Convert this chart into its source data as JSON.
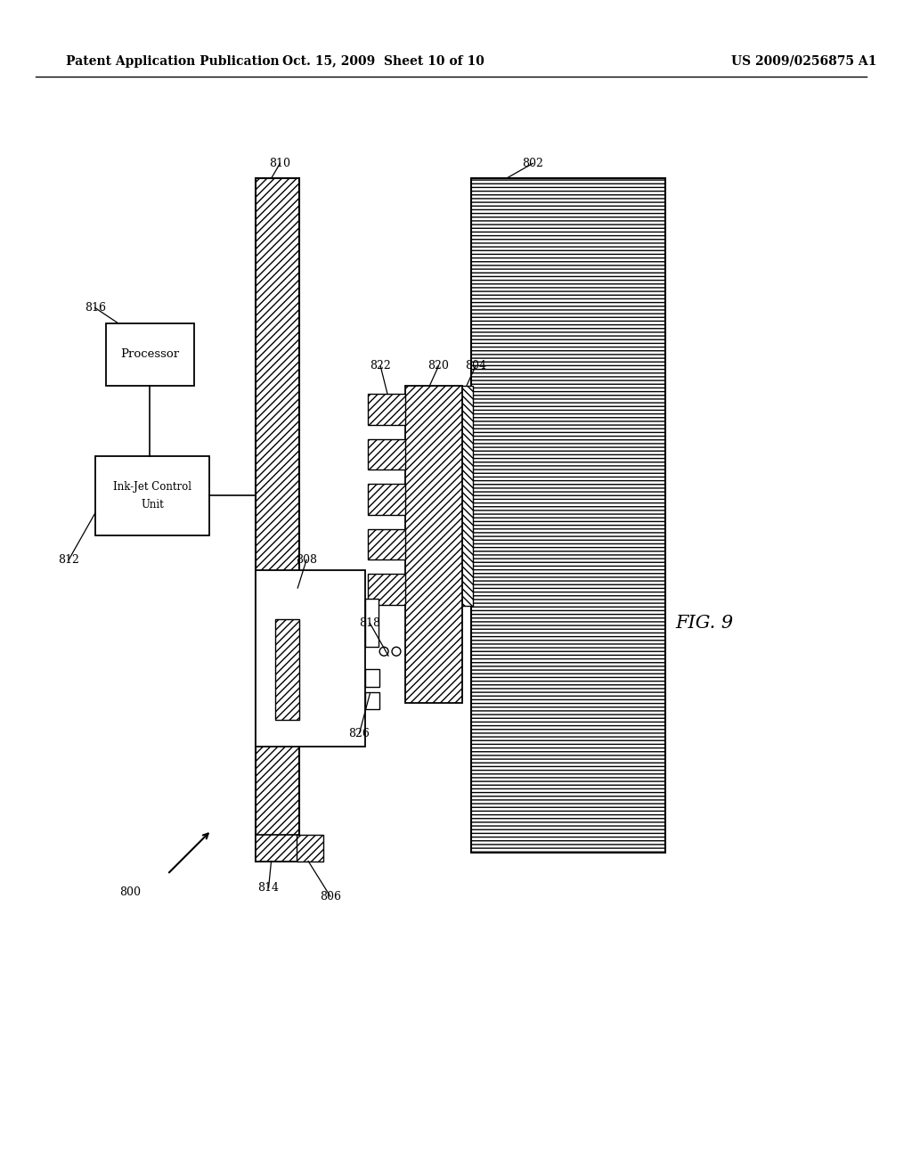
{
  "title_left": "Patent Application Publication",
  "title_mid": "Oct. 15, 2009  Sheet 10 of 10",
  "title_right": "US 2009/0256875 A1",
  "fig_label": "FIG. 9",
  "background": "#ffffff"
}
